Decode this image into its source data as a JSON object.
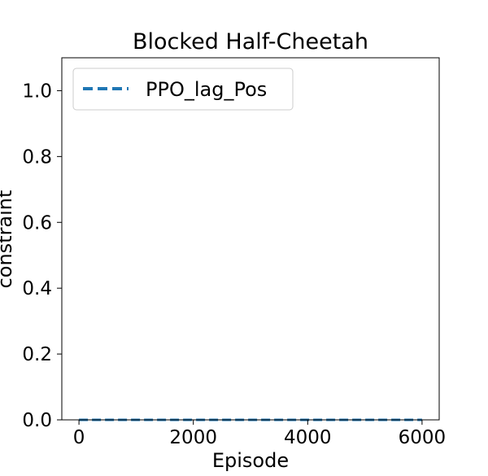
{
  "chart_data": {
    "type": "line",
    "title": "Blocked Half-Cheetah",
    "xlabel": "Episode",
    "ylabel": "constraint",
    "xlim": [
      -300,
      6300
    ],
    "ylim": [
      0,
      1.1
    ],
    "x_ticks": [
      0,
      2000,
      4000,
      6000
    ],
    "y_ticks": [
      0.0,
      0.2,
      0.4,
      0.6,
      0.8,
      1.0
    ],
    "x_tick_labels": [
      "0",
      "2000",
      "4000",
      "6000"
    ],
    "y_tick_labels": [
      "0.0",
      "0.2",
      "0.4",
      "0.6",
      "0.8",
      "1.0"
    ],
    "grid": false,
    "legend_position": "top-left",
    "series": [
      {
        "name": "PPO_lag_Pos",
        "color": "#1f77b4",
        "linestyle": "dashed",
        "x": [
          0,
          1000,
          2000,
          3000,
          4000,
          5000,
          6000
        ],
        "y": [
          0,
          0,
          0,
          0,
          0,
          0,
          0
        ]
      }
    ]
  }
}
